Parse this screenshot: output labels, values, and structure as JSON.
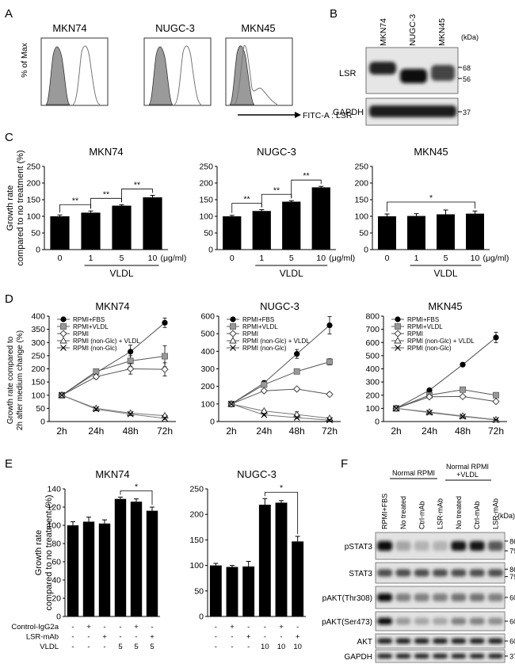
{
  "panels": {
    "A": "A",
    "B": "B",
    "C": "C",
    "D": "D",
    "E": "E",
    "F": "F"
  },
  "A": {
    "ylabel": "% of Max",
    "xlabel": "FITC-A : LSR",
    "plots": [
      {
        "title": "MKN74"
      },
      {
        "title": "NUGC-3"
      },
      {
        "title": "MKN45"
      }
    ]
  },
  "B": {
    "lanes": [
      "MKN74",
      "NUGC-3",
      "MKN45"
    ],
    "unit": "(kDa)",
    "rows": [
      {
        "label": "LSR",
        "markers": [
          "68",
          "56"
        ]
      },
      {
        "label": "GAPDH",
        "markers": [
          "37"
        ]
      }
    ]
  },
  "D": {
    "ylabel_line1": "Growth rate compared to",
    "ylabel_line2": "2h after medium change (%)"
  },
  "F": {
    "group1": "Normal RPMI",
    "group2_line1": "Normal RPMI",
    "group2_line2": "+VLDL",
    "lanes": [
      "RPMI+FBS",
      "No treated",
      "Ctrl-mAb",
      "LSR-mAb",
      "No treated",
      "Ctrl-mAb",
      "LSR-mAb"
    ],
    "unit": "(kDa)",
    "rows": [
      {
        "label": "pSTAT3",
        "markers": [
          "86",
          "79"
        ]
      },
      {
        "label": "STAT3",
        "markers": [
          "86",
          "79"
        ]
      },
      {
        "label": "pAKT(Thr308)",
        "markers": [
          "60"
        ]
      },
      {
        "label": "pAKT(Ser473)",
        "markers": [
          "60"
        ]
      },
      {
        "label": "AKT",
        "markers": [
          "60"
        ]
      },
      {
        "label": "GAPDH",
        "markers": [
          "37"
        ]
      }
    ]
  },
  "chart_data": [
    {
      "id": "C-MKN74",
      "type": "bar",
      "title": "MKN74",
      "categories": [
        "0",
        "1",
        "5",
        "10"
      ],
      "values": [
        100,
        111,
        132,
        157
      ],
      "errors": [
        4,
        5,
        3,
        6
      ],
      "ylim": [
        0,
        250
      ],
      "yticks": [
        0,
        50,
        100,
        150,
        200,
        250
      ],
      "ylabel": "Growth rate compared to no treatment (%)",
      "xgroup": "VLDL",
      "unit": "(μg/ml)",
      "sig": [
        {
          "label": "**",
          "from": 0,
          "to": 1
        },
        {
          "label": "**",
          "from": 1,
          "to": 2
        },
        {
          "label": "**",
          "from": 2,
          "to": 3
        }
      ]
    },
    {
      "id": "C-NUGC3",
      "type": "bar",
      "title": "NUGC-3",
      "categories": [
        "0",
        "1",
        "5",
        "10"
      ],
      "values": [
        100,
        116,
        144,
        187
      ],
      "errors": [
        3,
        4,
        3,
        3
      ],
      "ylim": [
        0,
        250
      ],
      "yticks": [
        0,
        50,
        100,
        150,
        200,
        250
      ],
      "xgroup": "VLDL",
      "unit": "(μg/ml)",
      "sig": [
        {
          "label": "**",
          "from": 0,
          "to": 1
        },
        {
          "label": "**",
          "from": 1,
          "to": 2
        },
        {
          "label": "**",
          "from": 2,
          "to": 3
        }
      ]
    },
    {
      "id": "C-MKN45",
      "type": "bar",
      "title": "MKN45",
      "categories": [
        "0",
        "1",
        "5",
        "10"
      ],
      "values": [
        100,
        101,
        106,
        108
      ],
      "errors": [
        7,
        7,
        13,
        8
      ],
      "ylim": [
        0,
        250
      ],
      "yticks": [
        0,
        50,
        100,
        150,
        200,
        250
      ],
      "xgroup": "VLDL",
      "unit": "(μg/ml)",
      "sig": [
        {
          "label": "*",
          "from": 0,
          "to": 3
        }
      ]
    },
    {
      "id": "D-MKN74",
      "type": "line",
      "title": "MKN74",
      "x": [
        "2h",
        "24h",
        "48h",
        "72h"
      ],
      "ylim": [
        0,
        400
      ],
      "yticks": [
        0,
        50,
        100,
        150,
        200,
        250,
        300,
        350,
        400
      ],
      "series": [
        {
          "name": "RPMI+FBS",
          "values": [
            100,
            185,
            265,
            375
          ],
          "errors": [
            0,
            8,
            25,
            18
          ]
        },
        {
          "name": "RPMI+VLDL",
          "values": [
            100,
            190,
            230,
            248
          ],
          "errors": [
            0,
            8,
            20,
            40
          ]
        },
        {
          "name": "RPMI",
          "values": [
            100,
            170,
            200,
            198
          ],
          "errors": [
            0,
            8,
            20,
            25
          ]
        },
        {
          "name": "RPMI (non-Glc) + VLDL",
          "values": [
            100,
            50,
            32,
            22
          ],
          "errors": [
            0,
            4,
            4,
            4
          ]
        },
        {
          "name": "RPMI (non-Glc)",
          "values": [
            100,
            47,
            28,
            12
          ],
          "errors": [
            0,
            4,
            4,
            4
          ]
        }
      ]
    },
    {
      "id": "D-NUGC3",
      "type": "line",
      "title": "NUGC-3",
      "x": [
        "2h",
        "24h",
        "48h",
        "72h"
      ],
      "ylim": [
        0,
        600
      ],
      "yticks": [
        0,
        100,
        200,
        300,
        400,
        500,
        600
      ],
      "series": [
        {
          "name": "RPMI+FBS",
          "values": [
            100,
            220,
            385,
            548
          ],
          "errors": [
            0,
            12,
            25,
            50
          ]
        },
        {
          "name": "RPMI+VLDL",
          "values": [
            100,
            210,
            285,
            340
          ],
          "errors": [
            0,
            10,
            12,
            18
          ]
        },
        {
          "name": "RPMI",
          "values": [
            100,
            175,
            185,
            155
          ],
          "errors": [
            0,
            8,
            10,
            10
          ]
        },
        {
          "name": "RPMI (non-Glc) + VLDL",
          "values": [
            100,
            60,
            40,
            18
          ],
          "errors": [
            0,
            6,
            15,
            5
          ]
        },
        {
          "name": "RPMI (non-Glc)",
          "values": [
            100,
            38,
            22,
            8
          ],
          "errors": [
            0,
            5,
            5,
            3
          ]
        }
      ]
    },
    {
      "id": "D-MKN45",
      "type": "line",
      "title": "MKN45",
      "x": [
        "2h",
        "24h",
        "48h",
        "72h"
      ],
      "ylim": [
        0,
        800
      ],
      "yticks": [
        0,
        100,
        200,
        300,
        400,
        500,
        600,
        700,
        800
      ],
      "series": [
        {
          "name": "RPMI+FBS",
          "values": [
            100,
            238,
            432,
            638
          ],
          "errors": [
            0,
            10,
            10,
            40
          ]
        },
        {
          "name": "RPMI+VLDL",
          "values": [
            100,
            200,
            242,
            200
          ],
          "errors": [
            0,
            8,
            10,
            10
          ]
        },
        {
          "name": "RPMI",
          "values": [
            100,
            188,
            190,
            152
          ],
          "errors": [
            0,
            8,
            10,
            10
          ]
        },
        {
          "name": "RPMI (non-Glc) + VLDL",
          "values": [
            100,
            72,
            42,
            14
          ],
          "errors": [
            0,
            5,
            5,
            3
          ]
        },
        {
          "name": "RPMI (non-Glc)",
          "values": [
            100,
            68,
            38,
            12
          ],
          "errors": [
            0,
            5,
            5,
            3
          ]
        }
      ]
    },
    {
      "id": "E-MKN74",
      "type": "bar",
      "title": "MKN74",
      "values": [
        100,
        104,
        102,
        129,
        126,
        116
      ],
      "errors": [
        4,
        5,
        4,
        2,
        3,
        4
      ],
      "ylim": [
        0,
        140
      ],
      "yticks": [
        0,
        20,
        40,
        60,
        80,
        100,
        120,
        140
      ],
      "ylabel": "Growth rate compared to no treatment (%)",
      "conditions": [
        {
          "label": "Control-IgG2a",
          "values": [
            "-",
            "+",
            "-",
            "-",
            "+",
            "-"
          ]
        },
        {
          "label": "LSR-mAb",
          "values": [
            "-",
            "-",
            "+",
            "-",
            "-",
            "+"
          ]
        },
        {
          "label": "VLDL",
          "values": [
            "-",
            "-",
            "-",
            "5",
            "5",
            "5"
          ]
        }
      ],
      "sig": [
        {
          "label": "*",
          "from": 3,
          "to": 5
        }
      ]
    },
    {
      "id": "E-NUGC3",
      "type": "bar",
      "title": "NUGC-3",
      "values": [
        100,
        97,
        98,
        219,
        223,
        147
      ],
      "errors": [
        4,
        3,
        10,
        12,
        4,
        10
      ],
      "ylim": [
        0,
        250
      ],
      "yticks": [
        0,
        50,
        100,
        150,
        200,
        250
      ],
      "conditions": [
        {
          "label": "Control-IgG2a",
          "values": [
            "-",
            "+",
            "-",
            "-",
            "+",
            "-"
          ]
        },
        {
          "label": "LSR-mAb",
          "values": [
            "-",
            "-",
            "+",
            "-",
            "-",
            "+"
          ]
        },
        {
          "label": "VLDL",
          "values": [
            "-",
            "-",
            "-",
            "10",
            "10",
            "10"
          ]
        }
      ],
      "sig": [
        {
          "label": "*",
          "from": 3,
          "to": 5
        }
      ]
    }
  ]
}
